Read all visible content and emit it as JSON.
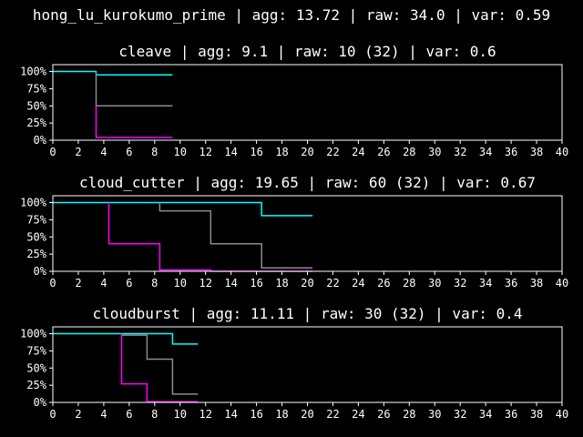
{
  "title": "hong_lu_kurokumo_prime | agg: 13.72 | raw: 34.0 | var: 0.59",
  "colors": {
    "background": "#000000",
    "axes": "#ffffff",
    "cyan_series": "#00ffff",
    "gray_series": "#8c8c8c",
    "magenta_series": "#ff00ff"
  },
  "chart_data": [
    {
      "type": "line",
      "step": true,
      "title": "cleave | agg: 9.1 | raw: 10 (32) | var: 0.6",
      "xlim": [
        0,
        40
      ],
      "ylim": [
        0,
        1.1
      ],
      "x_ticks": [
        0,
        2,
        4,
        6,
        8,
        10,
        12,
        14,
        16,
        18,
        20,
        22,
        24,
        26,
        28,
        30,
        32,
        34,
        36,
        38,
        40
      ],
      "y_ticks": [
        0,
        0.25,
        0.5,
        0.75,
        1.0
      ],
      "y_tick_labels": [
        "0%",
        "25%",
        "50%",
        "75%",
        "100%"
      ],
      "grid": false,
      "series": [
        {
          "color": "#00ffff",
          "points": [
            [
              0,
              1.0
            ],
            [
              3.4,
              1.0
            ],
            [
              3.4,
              0.95
            ],
            [
              9.4,
              0.95
            ]
          ]
        },
        {
          "color": "#8c8c8c",
          "points": [
            [
              3.4,
              1.0
            ],
            [
              3.4,
              0.5
            ],
            [
              9.4,
              0.5
            ]
          ]
        },
        {
          "color": "#ff00ff",
          "points": [
            [
              3.4,
              0.5
            ],
            [
              3.4,
              0.04
            ],
            [
              9.4,
              0.04
            ]
          ]
        }
      ]
    },
    {
      "type": "line",
      "step": true,
      "title": "cloud_cutter | agg: 19.65 | raw: 60 (32) | var: 0.67",
      "xlim": [
        0,
        40
      ],
      "ylim": [
        0,
        1.1
      ],
      "x_ticks": [
        0,
        2,
        4,
        6,
        8,
        10,
        12,
        14,
        16,
        18,
        20,
        22,
        24,
        26,
        28,
        30,
        32,
        34,
        36,
        38,
        40
      ],
      "y_ticks": [
        0,
        0.25,
        0.5,
        0.75,
        1.0
      ],
      "y_tick_labels": [
        "0%",
        "25%",
        "50%",
        "75%",
        "100%"
      ],
      "grid": false,
      "series": [
        {
          "color": "#00ffff",
          "points": [
            [
              0,
              1.0
            ],
            [
              16.4,
              1.0
            ],
            [
              16.4,
              0.81
            ],
            [
              20.4,
              0.81
            ]
          ]
        },
        {
          "color": "#8c8c8c",
          "points": [
            [
              8.4,
              1.0
            ],
            [
              8.4,
              0.88
            ],
            [
              12.4,
              0.88
            ],
            [
              12.4,
              0.4
            ],
            [
              16.4,
              0.4
            ],
            [
              16.4,
              0.05
            ],
            [
              20.4,
              0.05
            ]
          ]
        },
        {
          "color": "#ff00ff",
          "points": [
            [
              4.4,
              1.0
            ],
            [
              4.4,
              0.4
            ],
            [
              8.4,
              0.4
            ],
            [
              8.4,
              0.02
            ],
            [
              12.4,
              0.02
            ],
            [
              12.4,
              0.0
            ],
            [
              20.4,
              0.0
            ]
          ]
        }
      ]
    },
    {
      "type": "line",
      "step": true,
      "title": "cloudburst | agg: 11.11 | raw: 30 (32) | var: 0.4",
      "xlim": [
        0,
        40
      ],
      "ylim": [
        0,
        1.1
      ],
      "x_ticks": [
        0,
        2,
        4,
        6,
        8,
        10,
        12,
        14,
        16,
        18,
        20,
        22,
        24,
        26,
        28,
        30,
        32,
        34,
        36,
        38,
        40
      ],
      "y_ticks": [
        0,
        0.25,
        0.5,
        0.75,
        1.0
      ],
      "y_tick_labels": [
        "0%",
        "25%",
        "50%",
        "75%",
        "100%"
      ],
      "grid": false,
      "series": [
        {
          "color": "#00ffff",
          "points": [
            [
              0,
              1.0
            ],
            [
              9.4,
              1.0
            ],
            [
              9.4,
              0.85
            ],
            [
              11.4,
              0.85
            ]
          ]
        },
        {
          "color": "#8c8c8c",
          "points": [
            [
              5.4,
              1.0
            ],
            [
              5.4,
              0.98
            ],
            [
              7.4,
              0.98
            ],
            [
              7.4,
              0.63
            ],
            [
              9.4,
              0.63
            ],
            [
              9.4,
              0.12
            ],
            [
              11.4,
              0.12
            ]
          ]
        },
        {
          "color": "#ff00ff",
          "points": [
            [
              5.4,
              1.0
            ],
            [
              5.4,
              0.27
            ],
            [
              7.4,
              0.27
            ],
            [
              7.4,
              0.01
            ],
            [
              11.4,
              0.01
            ]
          ]
        }
      ]
    }
  ]
}
